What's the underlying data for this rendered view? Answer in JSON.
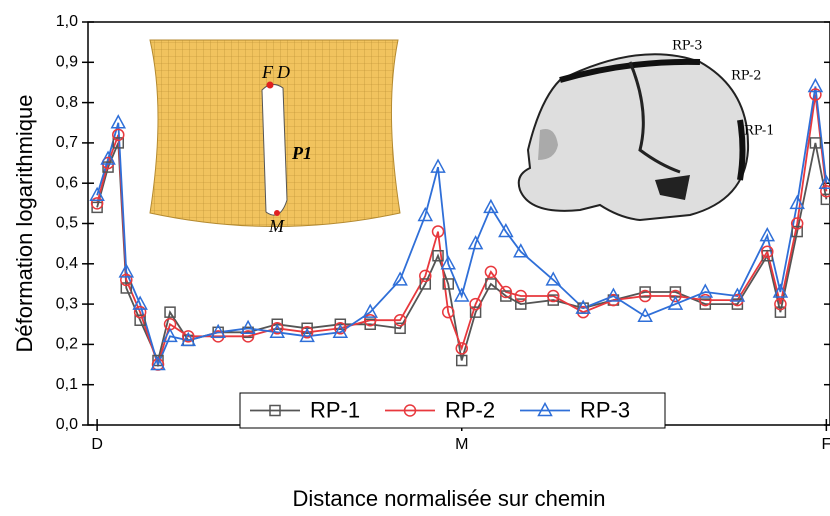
{
  "chart_data": {
    "type": "line",
    "xlabel": "Distance normalisée sur chemin",
    "ylabel": "Déformation logarithmique",
    "x": [
      0,
      0.03,
      0.058,
      0.08,
      0.118,
      0.167,
      0.2,
      0.25,
      0.332,
      0.414,
      0.494,
      0.576,
      0.667,
      0.749,
      0.831,
      0.9,
      0.935,
      0.963,
      1.0,
      1.038,
      1.08,
      1.121,
      1.162,
      1.251,
      1.333,
      1.416,
      1.503,
      1.586,
      1.668,
      1.756,
      1.838,
      1.874,
      1.92,
      1.97,
      2.0
    ],
    "series": [
      {
        "name": "RP-1",
        "color": "#555555",
        "marker": "square",
        "values": [
          0.54,
          0.64,
          0.7,
          0.34,
          0.26,
          0.16,
          0.28,
          0.21,
          0.23,
          0.23,
          0.25,
          0.24,
          0.25,
          0.25,
          0.24,
          0.35,
          0.42,
          0.35,
          0.16,
          0.28,
          0.35,
          0.32,
          0.3,
          0.31,
          0.29,
          0.31,
          0.33,
          0.33,
          0.3,
          0.3,
          0.42,
          0.28,
          0.48,
          0.7,
          0.56
        ]
      },
      {
        "name": "RP-2",
        "color": "#e8383d",
        "marker": "circle",
        "values": [
          0.55,
          0.65,
          0.72,
          0.36,
          0.28,
          0.15,
          0.25,
          0.22,
          0.22,
          0.22,
          0.24,
          0.23,
          0.24,
          0.26,
          0.26,
          0.37,
          0.48,
          0.28,
          0.19,
          0.3,
          0.38,
          0.33,
          0.32,
          0.32,
          0.28,
          0.31,
          0.32,
          0.32,
          0.31,
          0.31,
          0.43,
          0.3,
          0.5,
          0.82,
          0.58
        ]
      },
      {
        "name": "RP-3",
        "color": "#2f6fd8",
        "marker": "triangle",
        "values": [
          0.57,
          0.66,
          0.75,
          0.38,
          0.3,
          0.15,
          0.22,
          0.21,
          0.23,
          0.24,
          0.23,
          0.22,
          0.23,
          0.28,
          0.36,
          0.52,
          0.64,
          0.4,
          0.32,
          0.45,
          0.54,
          0.48,
          0.43,
          0.36,
          0.29,
          0.32,
          0.27,
          0.3,
          0.33,
          0.32,
          0.47,
          0.33,
          0.55,
          0.84,
          0.6
        ]
      }
    ],
    "xlim": [
      -0.025,
      2.01
    ],
    "ylim": [
      0,
      1
    ],
    "xticks": [
      {
        "value": 0,
        "label": "D"
      },
      {
        "value": 1,
        "label": "M"
      },
      {
        "value": 2,
        "label": "F"
      }
    ],
    "yticks": [
      {
        "value": 0,
        "label": "0,0"
      },
      {
        "value": 0.1,
        "label": "0,1"
      },
      {
        "value": 0.2,
        "label": "0,2"
      },
      {
        "value": 0.3,
        "label": "0,3"
      },
      {
        "value": 0.4,
        "label": "0,4"
      },
      {
        "value": 0.5,
        "label": "0,5"
      },
      {
        "value": 0.6,
        "label": "0,6"
      },
      {
        "value": 0.7,
        "label": "0,7"
      },
      {
        "value": 0.8,
        "label": "0,8"
      },
      {
        "value": 0.9,
        "label": "0,9"
      },
      {
        "value": 1,
        "label": "1,0"
      }
    ],
    "legend": "bottom",
    "annotations": [
      "F",
      "D",
      "P1",
      "M",
      "RP-3",
      "RP-2",
      "RP-1"
    ]
  }
}
